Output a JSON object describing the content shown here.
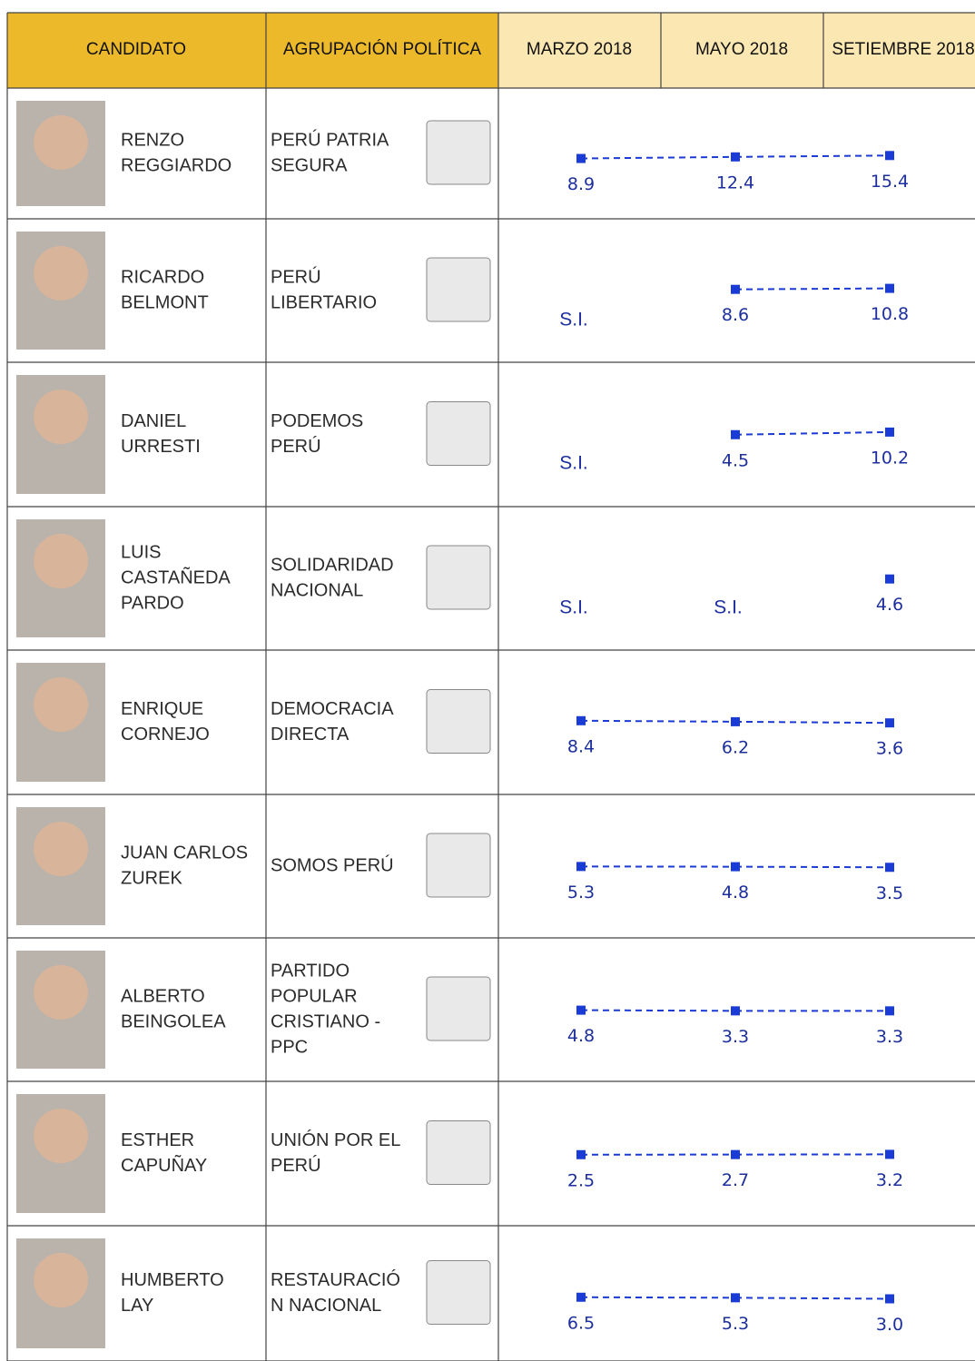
{
  "header": [
    "CANDIDATO",
    "AGRUPACIÓN POLÍTICA",
    "MARZO 2018",
    "MAYO 2018",
    "SETIEMBRE 2018"
  ],
  "rows": [
    {
      "candidate": [
        "RENZO",
        "REGGIARDO"
      ],
      "party": [
        "PERÚ PATRIA",
        "SEGURA"
      ],
      "values": [
        8.9,
        12.4,
        15.4
      ],
      "value_labels": [
        "8.9",
        "12.4",
        "15.4"
      ]
    },
    {
      "candidate": [
        "RICARDO",
        "BELMONT"
      ],
      "party": [
        "PERÚ",
        "LIBERTARIO"
      ],
      "values": [
        null,
        8.6,
        10.8
      ],
      "value_labels": [
        "S.I.",
        "8.6",
        "10.8"
      ]
    },
    {
      "candidate": [
        "DANIEL",
        "URRESTI"
      ],
      "party": [
        "PODEMOS",
        "PERÚ"
      ],
      "values": [
        null,
        4.5,
        10.2
      ],
      "value_labels": [
        "S.I.",
        "4.5",
        "10.2"
      ]
    },
    {
      "candidate": [
        "LUIS",
        "CASTAÑEDA",
        "PARDO"
      ],
      "party": [
        "SOLIDARIDAD",
        "NACIONAL"
      ],
      "values": [
        null,
        null,
        4.6
      ],
      "value_labels": [
        "S.I.",
        "S.I.",
        "4.6"
      ]
    },
    {
      "candidate": [
        "ENRIQUE",
        "CORNEJO"
      ],
      "party": [
        "DEMOCRACIA",
        "DIRECTA"
      ],
      "values": [
        8.4,
        6.2,
        3.6
      ],
      "value_labels": [
        "8.4",
        "6.2",
        "3.6"
      ]
    },
    {
      "candidate": [
        "JUAN CARLOS",
        "ZUREK"
      ],
      "party": [
        "SOMOS PERÚ"
      ],
      "values": [
        5.3,
        4.8,
        3.5
      ],
      "value_labels": [
        "5.3",
        "4.8",
        "3.5"
      ]
    },
    {
      "candidate": [
        "ALBERTO",
        "BEINGOLEA"
      ],
      "party": [
        "PARTIDO",
        "POPULAR",
        "CRISTIANO -",
        "PPC"
      ],
      "values": [
        4.8,
        3.3,
        3.3
      ],
      "value_labels": [
        "4.8",
        "3.3",
        "3.3"
      ]
    },
    {
      "candidate": [
        "ESTHER",
        "CAPUÑAY"
      ],
      "party": [
        "UNIÓN POR EL",
        "PERÚ"
      ],
      "values": [
        2.5,
        2.7,
        3.2
      ],
      "value_labels": [
        "2.5",
        "2.7",
        "3.2"
      ]
    },
    {
      "candidate": [
        "HUMBERTO",
        "LAY"
      ],
      "party": [
        "RESTAURACIÓ",
        "N NACIONAL"
      ],
      "values": [
        6.5,
        5.3,
        3.0
      ],
      "value_labels": [
        "6.5",
        "5.3",
        "3.0"
      ]
    }
  ]
}
